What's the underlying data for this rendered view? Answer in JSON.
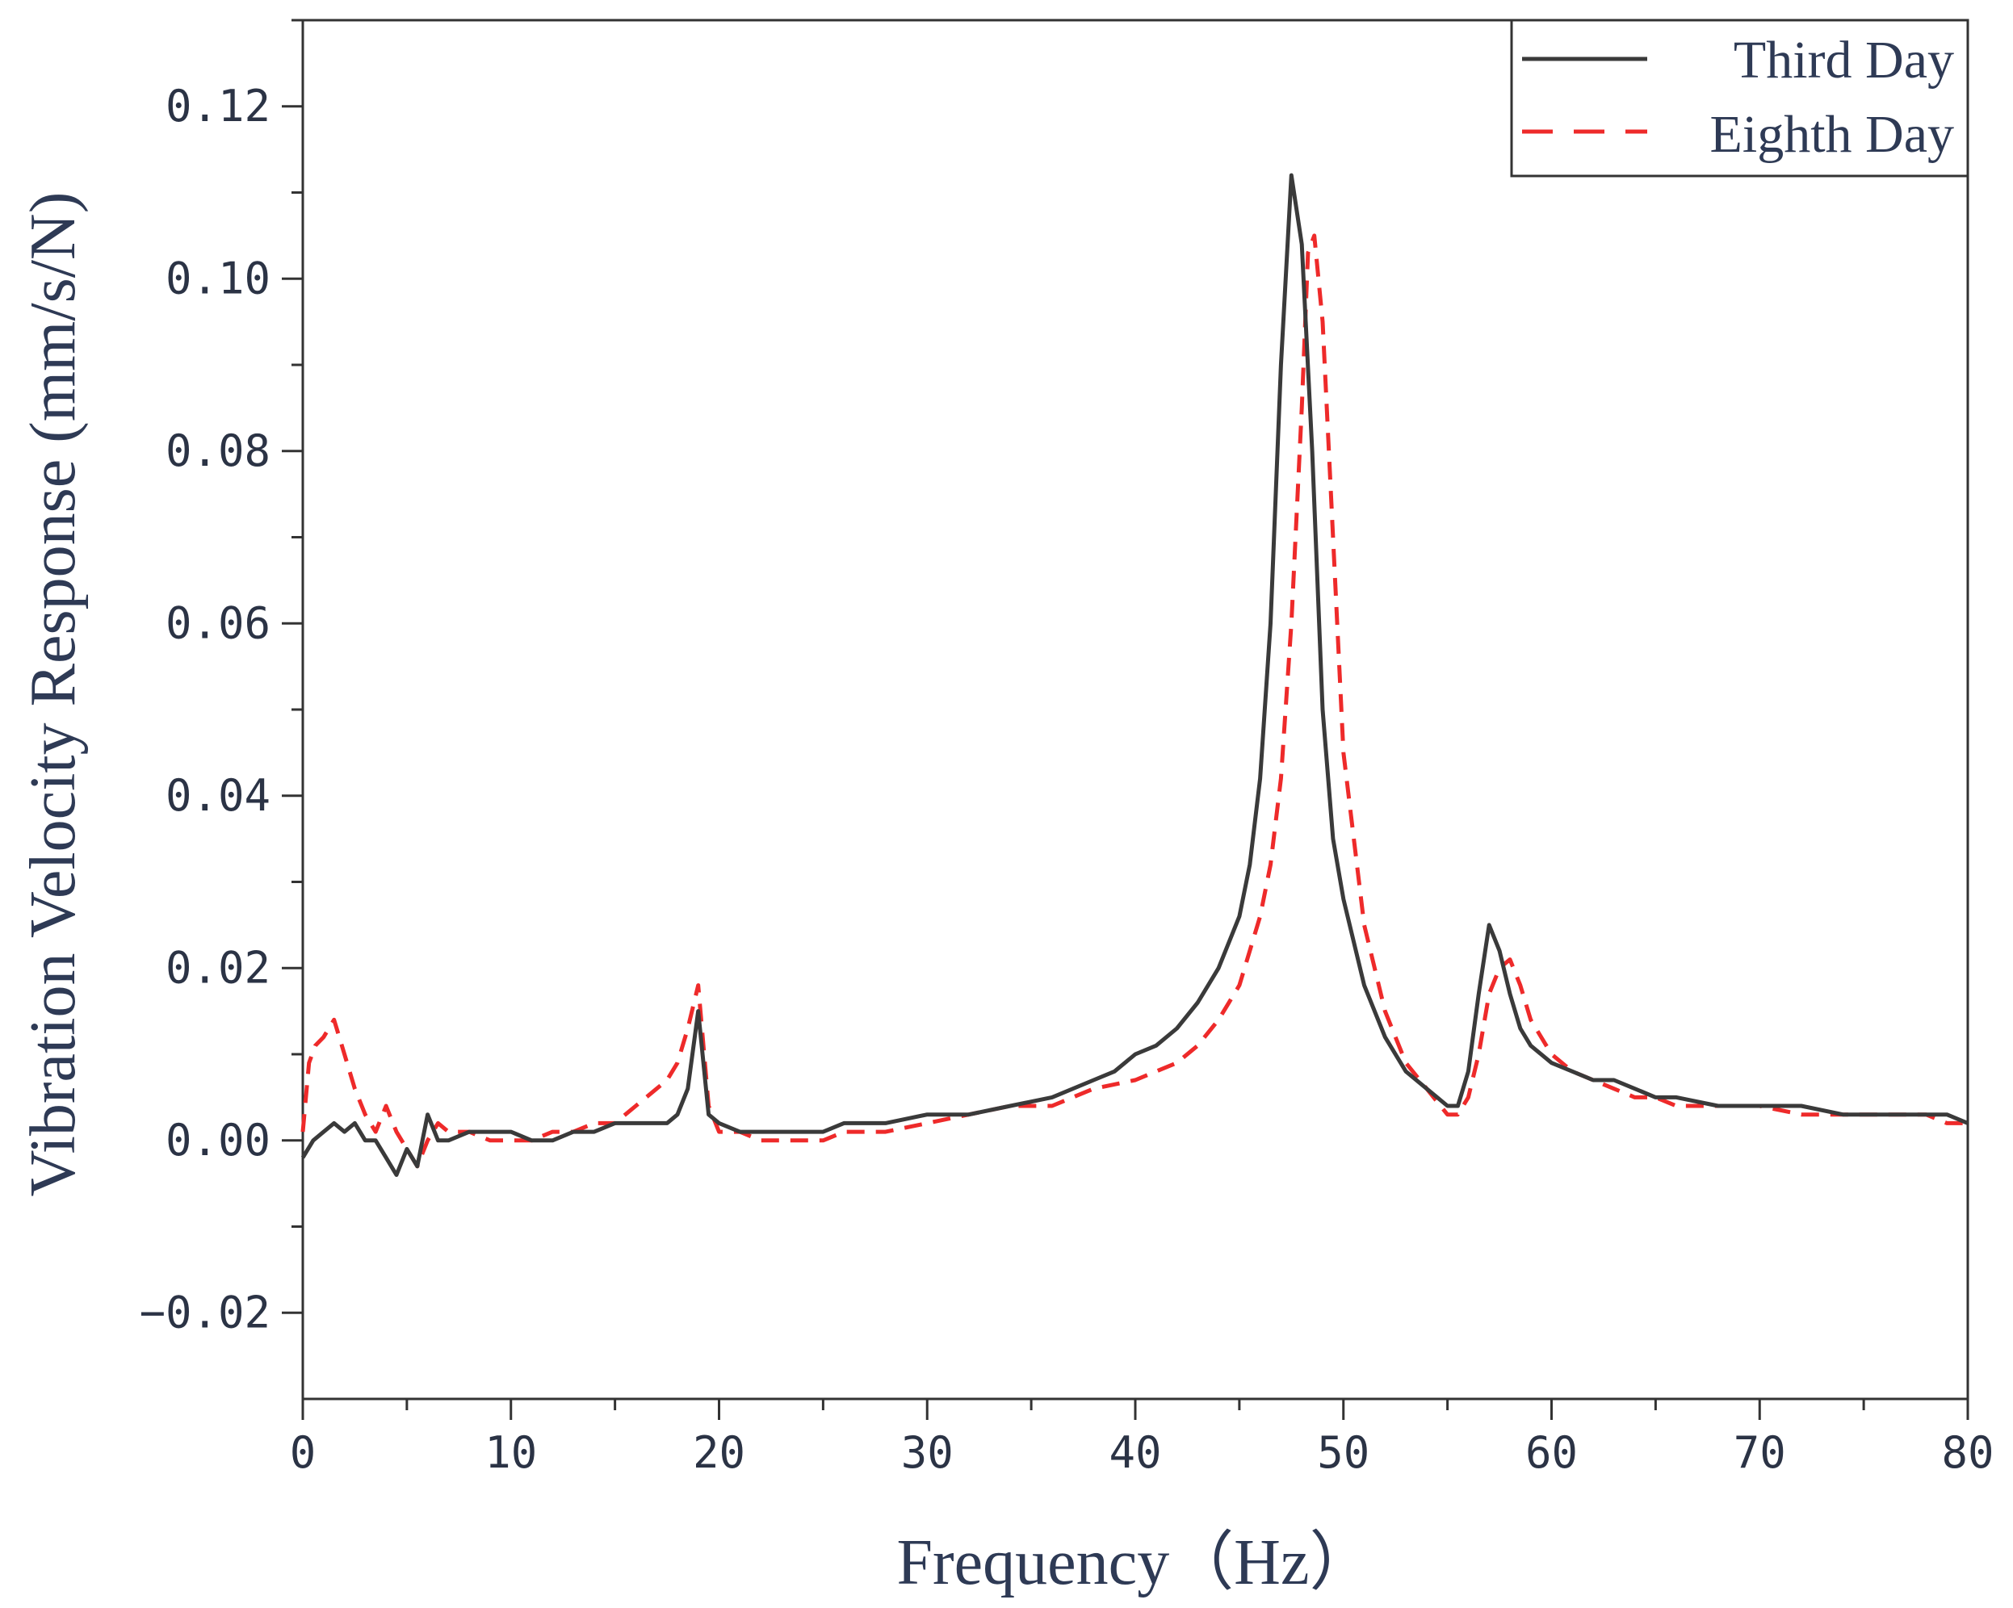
{
  "chart_data": {
    "type": "line",
    "title": "",
    "xlabel": "Frequency（Hz）",
    "ylabel": "Vibration Velocity Response (mm/s/N)",
    "xlim": [
      0,
      80
    ],
    "ylim": [
      -0.03,
      0.13
    ],
    "x_ticks": [
      0,
      10,
      20,
      30,
      40,
      50,
      60,
      70,
      80
    ],
    "x_tick_labels": [
      "0",
      "10",
      "20",
      "30",
      "40",
      "50",
      "60",
      "70",
      "80"
    ],
    "y_ticks": [
      -0.02,
      0.0,
      0.02,
      0.04,
      0.06,
      0.08,
      0.1,
      0.12
    ],
    "y_tick_labels": [
      "−0.02",
      "0.00",
      "0.02",
      "0.04",
      "0.06",
      "0.08",
      "0.10",
      "0.12"
    ],
    "grid": false,
    "legend_position": "top-right",
    "series": [
      {
        "name": "Third Day",
        "color": "#3a3a3a",
        "style": "solid",
        "x": [
          0,
          0.5,
          1,
          1.5,
          2,
          2.5,
          3,
          3.5,
          4,
          4.5,
          5,
          5.5,
          6,
          6.5,
          7,
          8,
          9,
          10,
          11,
          12,
          13,
          14,
          15,
          16,
          17,
          17.5,
          18,
          18.5,
          19,
          19.5,
          20,
          21,
          22,
          23,
          24,
          25,
          26,
          28,
          30,
          32,
          34,
          36,
          38,
          39,
          40,
          41,
          42,
          43,
          44,
          45,
          45.5,
          46,
          46.5,
          47,
          47.5,
          48,
          48.5,
          49,
          49.5,
          50,
          51,
          52,
          53,
          54,
          55,
          55.5,
          56,
          56.5,
          57,
          57.5,
          58,
          58.5,
          59,
          60,
          61,
          62,
          63,
          64,
          65,
          66,
          68,
          70,
          72,
          74,
          76,
          78,
          79,
          80
        ],
        "values": [
          -0.002,
          0.0,
          0.001,
          0.002,
          0.001,
          0.002,
          0.0,
          0.0,
          -0.002,
          -0.004,
          -0.001,
          -0.003,
          0.003,
          0.0,
          0.0,
          0.001,
          0.001,
          0.001,
          0.0,
          0.0,
          0.001,
          0.001,
          0.002,
          0.002,
          0.002,
          0.002,
          0.003,
          0.006,
          0.015,
          0.003,
          0.002,
          0.001,
          0.001,
          0.001,
          0.001,
          0.001,
          0.002,
          0.002,
          0.003,
          0.003,
          0.004,
          0.005,
          0.007,
          0.008,
          0.01,
          0.011,
          0.013,
          0.016,
          0.02,
          0.026,
          0.032,
          0.042,
          0.06,
          0.09,
          0.112,
          0.104,
          0.08,
          0.05,
          0.035,
          0.028,
          0.018,
          0.012,
          0.008,
          0.006,
          0.004,
          0.004,
          0.008,
          0.017,
          0.025,
          0.022,
          0.017,
          0.013,
          0.011,
          0.009,
          0.008,
          0.007,
          0.007,
          0.006,
          0.005,
          0.005,
          0.004,
          0.004,
          0.004,
          0.003,
          0.003,
          0.003,
          0.003,
          0.002
        ]
      },
      {
        "name": "Eighth Day",
        "color": "#ee2a2a",
        "style": "dashed",
        "x": [
          0,
          0.3,
          0.6,
          1,
          1.5,
          2,
          2.5,
          3,
          3.5,
          4,
          4.5,
          5,
          5.5,
          6,
          6.5,
          7,
          8,
          9,
          10,
          11,
          12,
          13,
          14,
          15,
          16,
          17,
          17.5,
          18,
          18.5,
          19,
          19.5,
          20,
          21,
          22,
          23,
          24,
          25,
          26,
          28,
          30,
          32,
          34,
          36,
          38,
          40,
          41,
          42,
          43,
          44,
          45,
          45.5,
          46,
          46.5,
          47,
          47.5,
          48,
          48.3,
          48.6,
          49,
          49.5,
          50,
          51,
          52,
          53,
          54,
          55,
          55.5,
          56,
          56.5,
          57,
          57.5,
          58,
          58.5,
          59,
          60,
          61,
          62,
          63,
          64,
          65,
          66,
          68,
          70,
          72,
          74,
          76,
          78,
          79,
          80
        ],
        "values": [
          0.001,
          0.009,
          0.011,
          0.012,
          0.014,
          0.01,
          0.006,
          0.003,
          0.001,
          0.004,
          0.001,
          -0.001,
          -0.003,
          0.0,
          0.002,
          0.001,
          0.001,
          0.0,
          0.0,
          0.0,
          0.001,
          0.001,
          0.002,
          0.002,
          0.004,
          0.006,
          0.007,
          0.009,
          0.013,
          0.018,
          0.004,
          0.001,
          0.001,
          0.0,
          0.0,
          0.0,
          0.0,
          0.001,
          0.001,
          0.002,
          0.003,
          0.004,
          0.004,
          0.006,
          0.007,
          0.008,
          0.009,
          0.011,
          0.014,
          0.018,
          0.022,
          0.026,
          0.032,
          0.042,
          0.06,
          0.085,
          0.103,
          0.105,
          0.095,
          0.07,
          0.045,
          0.025,
          0.015,
          0.009,
          0.006,
          0.003,
          0.003,
          0.005,
          0.01,
          0.017,
          0.02,
          0.021,
          0.018,
          0.014,
          0.01,
          0.008,
          0.007,
          0.006,
          0.005,
          0.005,
          0.004,
          0.004,
          0.004,
          0.003,
          0.003,
          0.003,
          0.003,
          0.002,
          0.002
        ]
      }
    ]
  }
}
